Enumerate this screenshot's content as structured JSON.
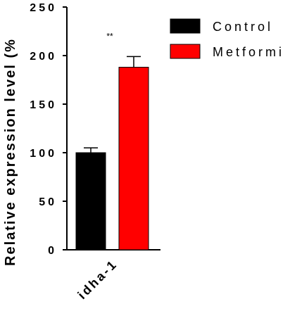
{
  "chart_data": {
    "type": "bar",
    "title": "",
    "xlabel": "",
    "ylabel": "Relative expression level (%",
    "categories": [
      "idha-1"
    ],
    "ylim": [
      0,
      250
    ],
    "yticks": [
      0,
      50,
      100,
      150,
      200,
      250
    ],
    "series": [
      {
        "name": "Control",
        "values": [
          100
        ],
        "error": [
          5
        ],
        "color": "#000000"
      },
      {
        "name": "Metformi",
        "values": [
          188
        ],
        "error": [
          11
        ],
        "color": "#ff0000"
      }
    ],
    "annotations": [
      {
        "text": "**",
        "category": "idha-1",
        "series": "Metformi"
      }
    ],
    "legend": "top-right",
    "grid": false
  }
}
